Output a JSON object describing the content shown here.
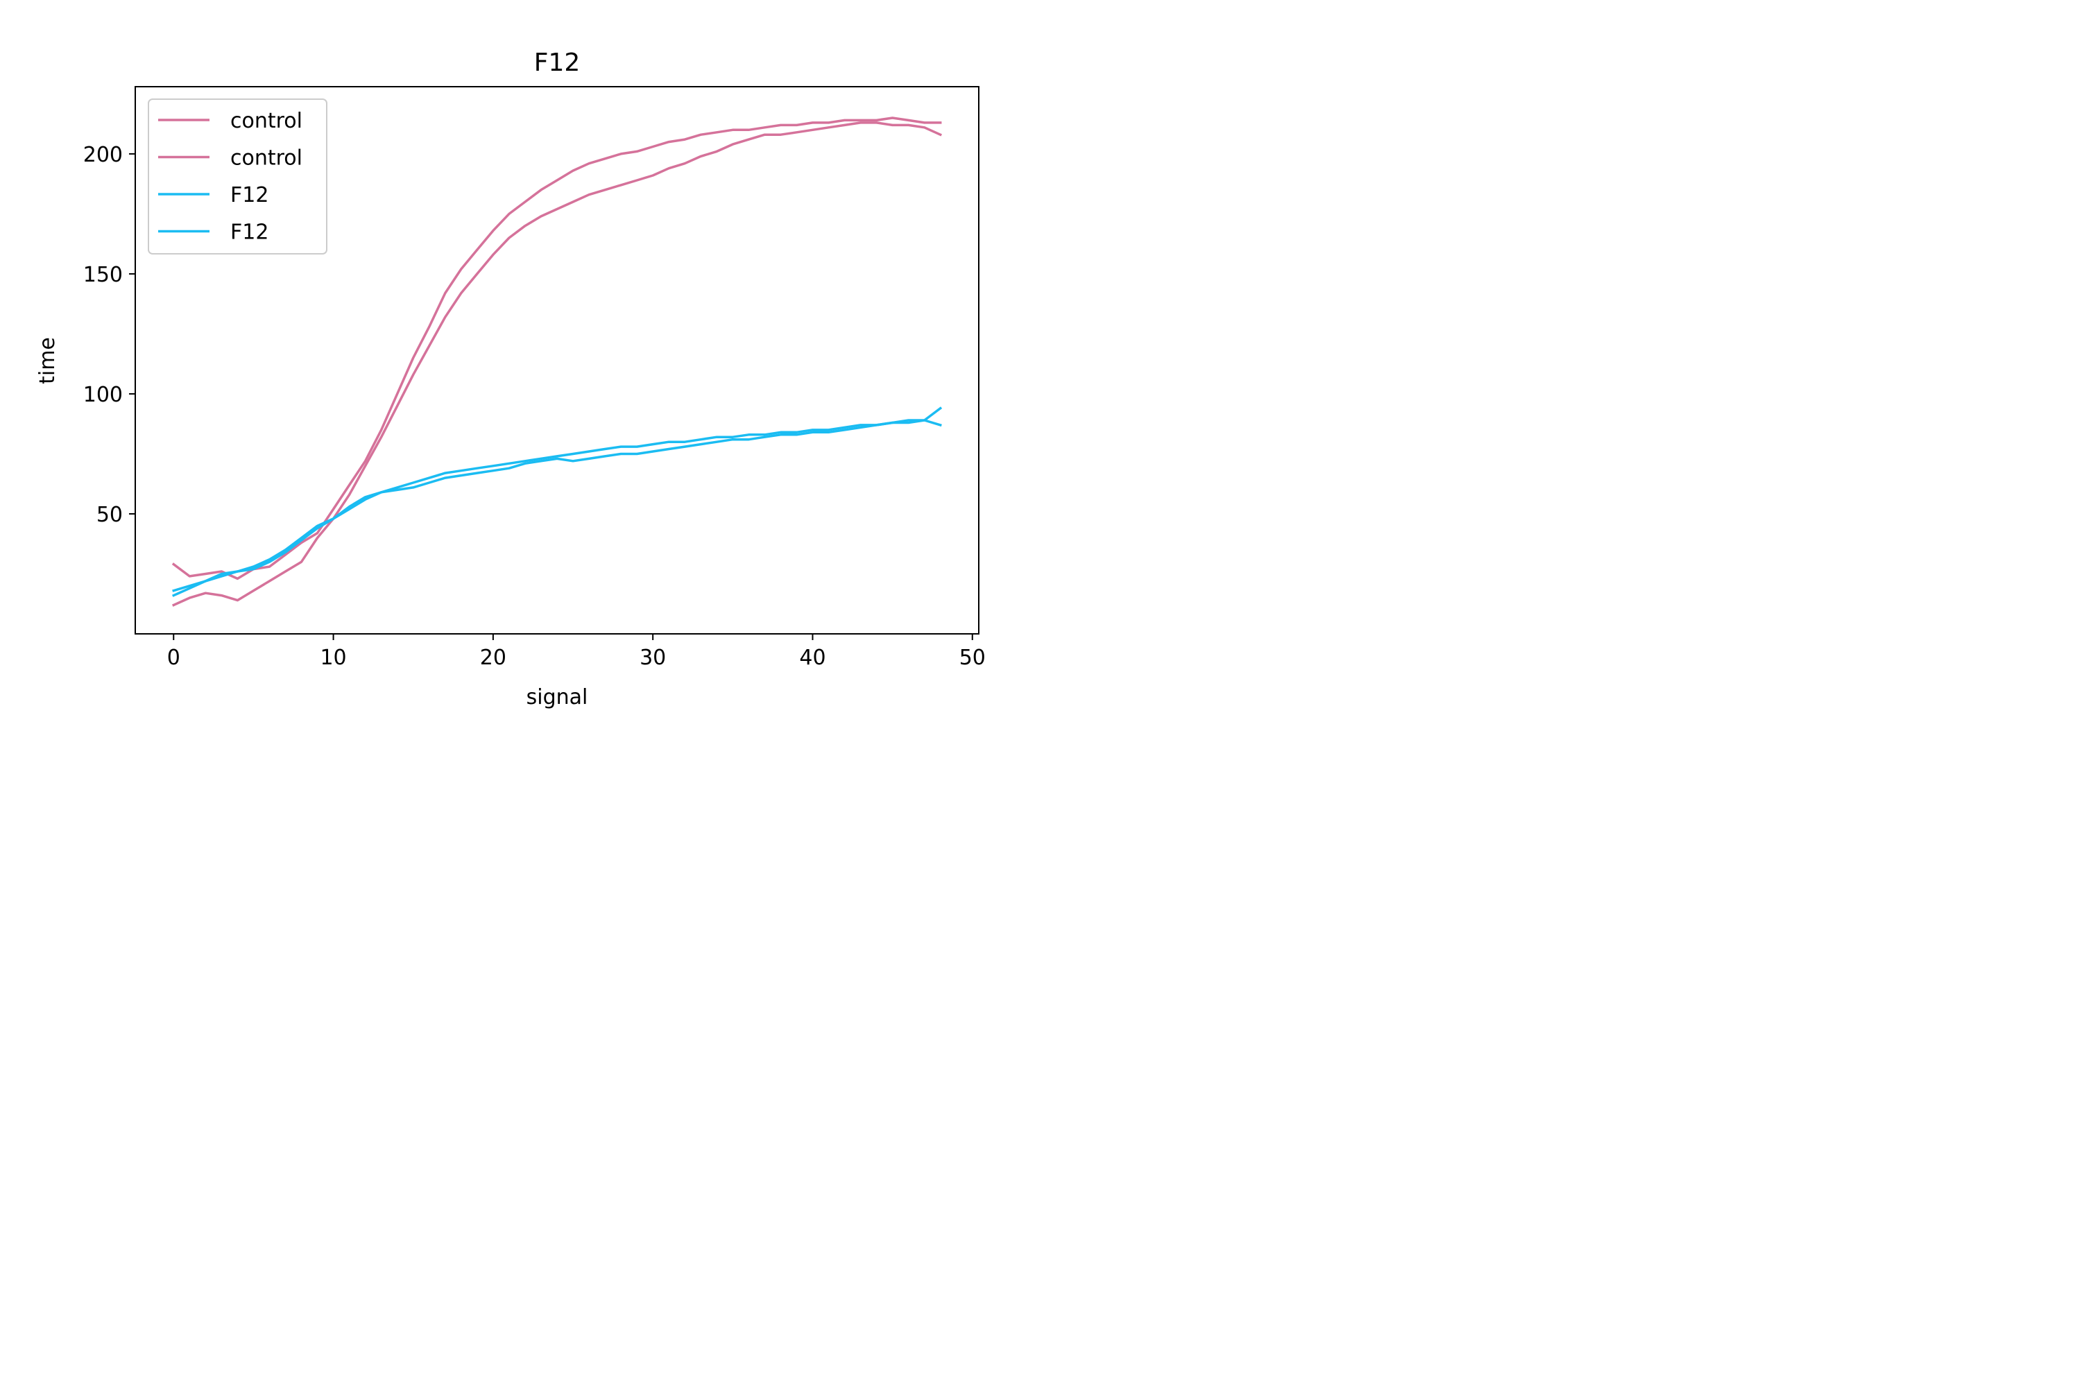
{
  "chart_data": {
    "type": "line",
    "title": "F12",
    "xlabel": "signal",
    "ylabel": "time",
    "xlim": [
      -2.4,
      50.4
    ],
    "ylim": [
      0,
      228
    ],
    "xticks": [
      0,
      10,
      20,
      30,
      40,
      50
    ],
    "yticks": [
      50,
      100,
      150,
      200
    ],
    "grid": false,
    "legend_position": "top-left",
    "series": [
      {
        "name": "control",
        "color": "#d5729a",
        "x": [
          0,
          1,
          2,
          3,
          4,
          5,
          6,
          7,
          8,
          9,
          10,
          11,
          12,
          13,
          14,
          15,
          16,
          17,
          18,
          19,
          20,
          21,
          22,
          23,
          24,
          25,
          26,
          27,
          28,
          29,
          30,
          31,
          32,
          33,
          34,
          35,
          36,
          37,
          38,
          39,
          40,
          41,
          42,
          43,
          44,
          45,
          46,
          47,
          48
        ],
        "y": [
          29,
          24,
          25,
          26,
          23,
          27,
          28,
          33,
          38,
          42,
          52,
          62,
          72,
          85,
          100,
          115,
          128,
          142,
          152,
          160,
          168,
          175,
          180,
          185,
          189,
          193,
          196,
          198,
          200,
          201,
          203,
          205,
          206,
          208,
          209,
          210,
          210,
          211,
          212,
          212,
          213,
          213,
          214,
          214,
          214,
          215,
          214,
          213,
          213
        ]
      },
      {
        "name": "control",
        "color": "#d5729a",
        "x": [
          0,
          1,
          2,
          3,
          4,
          5,
          6,
          7,
          8,
          9,
          10,
          11,
          12,
          13,
          14,
          15,
          16,
          17,
          18,
          19,
          20,
          21,
          22,
          23,
          24,
          25,
          26,
          27,
          28,
          29,
          30,
          31,
          32,
          33,
          34,
          35,
          36,
          37,
          38,
          39,
          40,
          41,
          42,
          43,
          44,
          45,
          46,
          47,
          48
        ],
        "y": [
          12,
          15,
          17,
          16,
          14,
          18,
          22,
          26,
          30,
          40,
          48,
          58,
          70,
          82,
          95,
          108,
          120,
          132,
          142,
          150,
          158,
          165,
          170,
          174,
          177,
          180,
          183,
          185,
          187,
          189,
          191,
          194,
          196,
          199,
          201,
          204,
          206,
          208,
          208,
          209,
          210,
          211,
          212,
          213,
          213,
          212,
          212,
          211,
          208
        ]
      },
      {
        "name": "F12",
        "color": "#1bbcf2",
        "x": [
          0,
          1,
          2,
          3,
          4,
          5,
          6,
          7,
          8,
          9,
          10,
          11,
          12,
          13,
          14,
          15,
          16,
          17,
          18,
          19,
          20,
          21,
          22,
          23,
          24,
          25,
          26,
          27,
          28,
          29,
          30,
          31,
          32,
          33,
          34,
          35,
          36,
          37,
          38,
          39,
          40,
          41,
          42,
          43,
          44,
          45,
          46,
          47,
          48
        ],
        "y": [
          18,
          20,
          22,
          25,
          26,
          28,
          31,
          35,
          40,
          45,
          48,
          52,
          56,
          59,
          61,
          63,
          65,
          67,
          68,
          69,
          70,
          71,
          72,
          73,
          74,
          75,
          76,
          77,
          78,
          78,
          79,
          80,
          80,
          81,
          82,
          82,
          83,
          83,
          84,
          84,
          85,
          85,
          86,
          87,
          87,
          88,
          88,
          89,
          94
        ]
      },
      {
        "name": "F12",
        "color": "#1bbcf2",
        "x": [
          0,
          1,
          2,
          3,
          4,
          5,
          6,
          7,
          8,
          9,
          10,
          11,
          12,
          13,
          14,
          15,
          16,
          17,
          18,
          19,
          20,
          21,
          22,
          23,
          24,
          25,
          26,
          27,
          28,
          29,
          30,
          31,
          32,
          33,
          34,
          35,
          36,
          37,
          38,
          39,
          40,
          41,
          42,
          43,
          44,
          45,
          46,
          47,
          48
        ],
        "y": [
          16,
          19,
          22,
          24,
          26,
          27,
          30,
          34,
          39,
          44,
          48,
          53,
          57,
          59,
          60,
          61,
          63,
          65,
          66,
          67,
          68,
          69,
          71,
          72,
          73,
          72,
          73,
          74,
          75,
          75,
          76,
          77,
          78,
          79,
          80,
          81,
          81,
          82,
          83,
          83,
          84,
          84,
          85,
          86,
          87,
          88,
          89,
          89,
          87
        ]
      }
    ]
  }
}
